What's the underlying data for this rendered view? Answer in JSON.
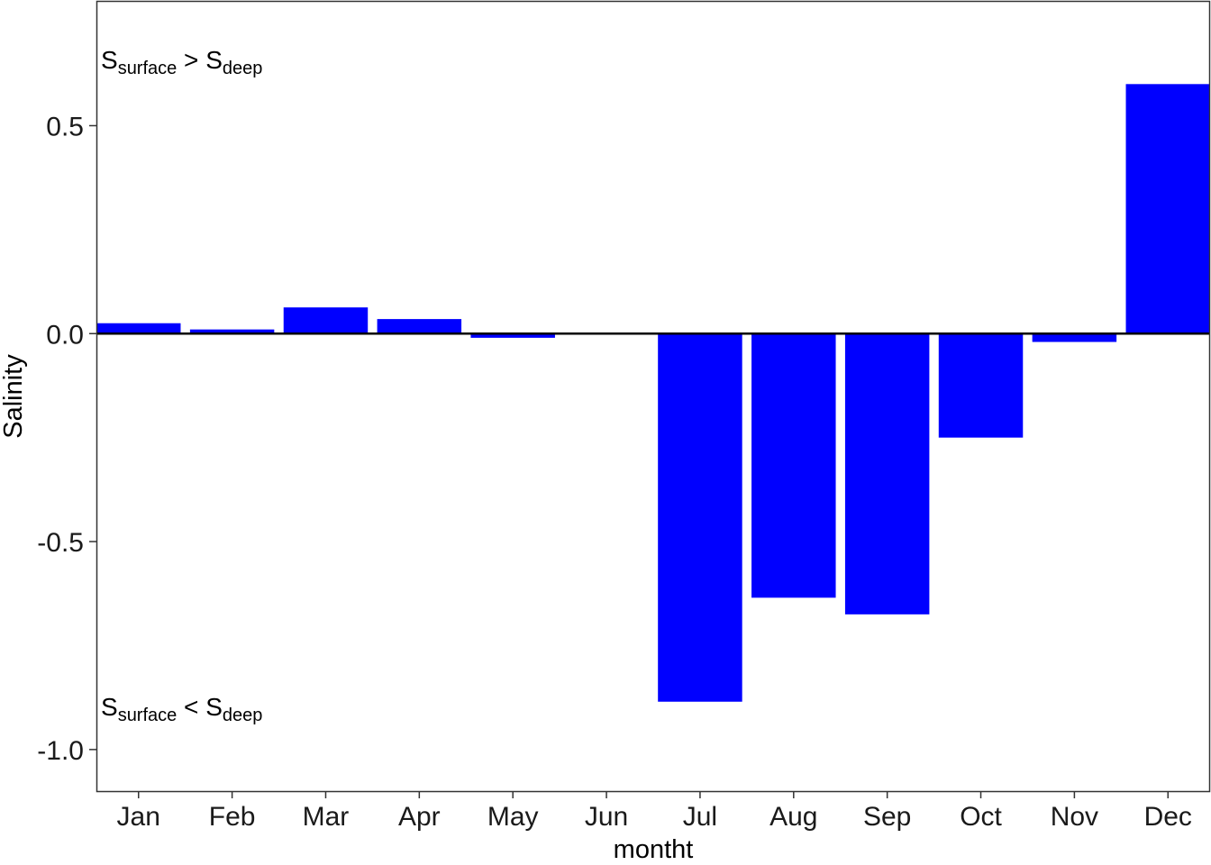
{
  "chart_data": {
    "type": "bar",
    "title": "",
    "xlabel": "montht",
    "ylabel": "Salinity",
    "categories": [
      "Jan",
      "Feb",
      "Mar",
      "Apr",
      "May",
      "Jun",
      "Jul",
      "Aug",
      "Sep",
      "Oct",
      "Nov",
      "Dec"
    ],
    "values": [
      0.025,
      0.01,
      0.063,
      0.035,
      -0.01,
      0.0,
      -0.885,
      -0.635,
      -0.675,
      -0.25,
      -0.02,
      0.6
    ],
    "ylim": [
      -1.1,
      0.8
    ],
    "yticks": [
      0.5,
      0.0,
      -0.5,
      -1.0
    ],
    "ytick_labels": [
      "0.5",
      "0.0",
      "-0.5",
      "-1.0"
    ],
    "grid": false,
    "bar_color": "#0000ff",
    "zero_line": true,
    "annotations": [
      {
        "base": "S",
        "sub1": "surface",
        "op": " > ",
        "base2": "S",
        "sub2": "deep"
      },
      {
        "base": "S",
        "sub1": "surface",
        "op": " < ",
        "base2": "S",
        "sub2": "deep"
      }
    ]
  }
}
